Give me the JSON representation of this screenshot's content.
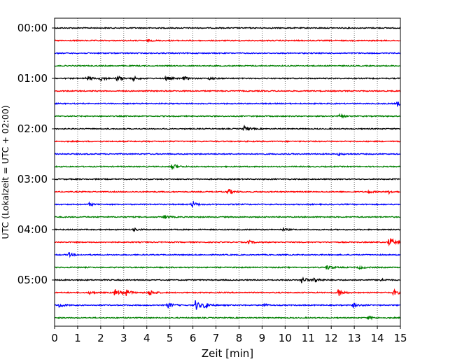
{
  "chart_data": {
    "type": "line",
    "title": "",
    "xlabel": "Zeit  [min]",
    "ylabel": "UTC (Lokalzeit = UTC + 02:00)",
    "xlim": [
      0,
      15
    ],
    "x_ticks": [
      "0",
      "1",
      "2",
      "3",
      "4",
      "5",
      "6",
      "7",
      "8",
      "9",
      "10",
      "11",
      "12",
      "13",
      "14",
      "15"
    ],
    "grid": "vertical dotted at each minute",
    "y_tick_labels": [
      "00:00",
      "01:00",
      "02:00",
      "03:00",
      "04:00",
      "05:00"
    ],
    "trace_interval_min": 15,
    "color_cycle": [
      "#000000",
      "#ff0000",
      "#0000ff",
      "#008000"
    ],
    "series": [
      {
        "label": "00:00",
        "events": []
      },
      {
        "label": "00:15",
        "events": [
          {
            "t": 4.05,
            "amp": 0.15
          }
        ]
      },
      {
        "label": "00:30",
        "events": []
      },
      {
        "label": "00:45",
        "events": []
      },
      {
        "label": "01:00",
        "events": [
          {
            "t": 1.4,
            "amp": 0.55
          },
          {
            "t": 2.0,
            "amp": 0.55
          },
          {
            "t": 2.7,
            "amp": 0.6
          },
          {
            "t": 3.4,
            "amp": 0.45
          },
          {
            "t": 4.8,
            "amp": 0.55
          },
          {
            "t": 5.6,
            "amp": 0.45
          },
          {
            "t": 6.7,
            "amp": 0.3
          }
        ]
      },
      {
        "label": "01:15",
        "events": []
      },
      {
        "label": "01:30",
        "events": [
          {
            "t": 14.85,
            "amp": 0.5
          }
        ]
      },
      {
        "label": "01:45",
        "events": [
          {
            "t": 12.35,
            "amp": 0.35
          }
        ]
      },
      {
        "label": "02:00",
        "events": [
          {
            "t": 8.2,
            "amp": 0.7
          }
        ]
      },
      {
        "label": "02:15",
        "events": []
      },
      {
        "label": "02:30",
        "events": [
          {
            "t": 12.3,
            "amp": 0.25
          }
        ]
      },
      {
        "label": "02:45",
        "events": [
          {
            "t": 5.1,
            "amp": 0.75
          }
        ]
      },
      {
        "label": "03:00",
        "events": []
      },
      {
        "label": "03:15",
        "events": [
          {
            "t": 7.5,
            "amp": 0.8
          },
          {
            "t": 13.6,
            "amp": 0.35
          },
          {
            "t": 14.5,
            "amp": 0.35
          }
        ]
      },
      {
        "label": "03:30",
        "events": [
          {
            "t": 1.5,
            "amp": 0.3
          },
          {
            "t": 5.95,
            "amp": 0.7
          }
        ]
      },
      {
        "label": "03:45",
        "events": [
          {
            "t": 4.75,
            "amp": 0.45
          }
        ]
      },
      {
        "label": "04:00",
        "events": [
          {
            "t": 3.4,
            "amp": 0.4
          },
          {
            "t": 9.9,
            "amp": 0.25
          }
        ]
      },
      {
        "label": "04:15",
        "events": [
          {
            "t": 8.4,
            "amp": 0.45
          },
          {
            "t": 14.5,
            "amp": 1.3
          }
        ]
      },
      {
        "label": "04:30",
        "events": [
          {
            "t": 0.6,
            "amp": 0.5
          }
        ]
      },
      {
        "label": "04:45",
        "events": [
          {
            "t": 11.8,
            "amp": 0.6
          },
          {
            "t": 13.2,
            "amp": 0.35
          }
        ]
      },
      {
        "label": "05:00",
        "events": [
          {
            "t": 10.7,
            "amp": 0.85
          },
          {
            "t": 11.25,
            "amp": 0.7
          },
          {
            "t": 14.1,
            "amp": 0.35
          }
        ]
      },
      {
        "label": "05:15",
        "events": [
          {
            "t": 1.5,
            "amp": 0.35
          },
          {
            "t": 2.6,
            "amp": 0.9
          },
          {
            "t": 3.0,
            "amp": 1.2
          },
          {
            "t": 4.1,
            "amp": 0.8
          },
          {
            "t": 12.3,
            "amp": 0.9
          },
          {
            "t": 14.7,
            "amp": 0.7
          }
        ]
      },
      {
        "label": "05:30",
        "events": [
          {
            "t": 0.2,
            "amp": 0.5
          },
          {
            "t": 4.9,
            "amp": 0.7
          },
          {
            "t": 6.1,
            "amp": 1.3
          },
          {
            "t": 6.5,
            "amp": 0.9
          },
          {
            "t": 9.0,
            "amp": 0.45
          },
          {
            "t": 12.95,
            "amp": 0.55
          }
        ]
      },
      {
        "label": "05:45",
        "events": [
          {
            "t": 13.6,
            "amp": 0.4
          }
        ]
      }
    ]
  }
}
